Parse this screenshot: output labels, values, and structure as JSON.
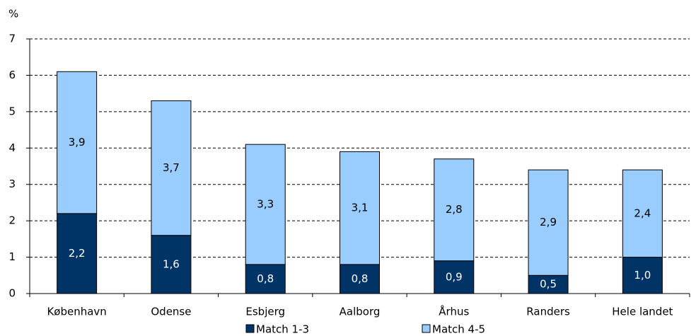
{
  "chart_data": {
    "type": "stacked_bar",
    "y_axis_label": "%",
    "categories": [
      "København",
      "Odense",
      "Esbjerg",
      "Aalborg",
      "Århus",
      "Randers",
      "Hele landet"
    ],
    "series": [
      {
        "name": "Match 1-3",
        "color": "#003366",
        "values": [
          2.2,
          1.6,
          0.8,
          0.8,
          0.9,
          0.5,
          1.0
        ],
        "value_labels": [
          "2,2",
          "1,6",
          "0,8",
          "0,8",
          "0,9",
          "0,5",
          "1,0"
        ]
      },
      {
        "name": "Match 4-5",
        "color": "#99ccff",
        "values": [
          3.9,
          3.7,
          3.3,
          3.1,
          2.8,
          2.9,
          2.4
        ],
        "value_labels": [
          "3,9",
          "3,7",
          "3,3",
          "3,1",
          "2,8",
          "2,9",
          "2,4"
        ]
      }
    ],
    "ylim": [
      0,
      7
    ],
    "yticks": [
      0,
      1,
      2,
      3,
      4,
      5,
      6,
      7
    ],
    "grid": true,
    "legend": "bottom"
  }
}
